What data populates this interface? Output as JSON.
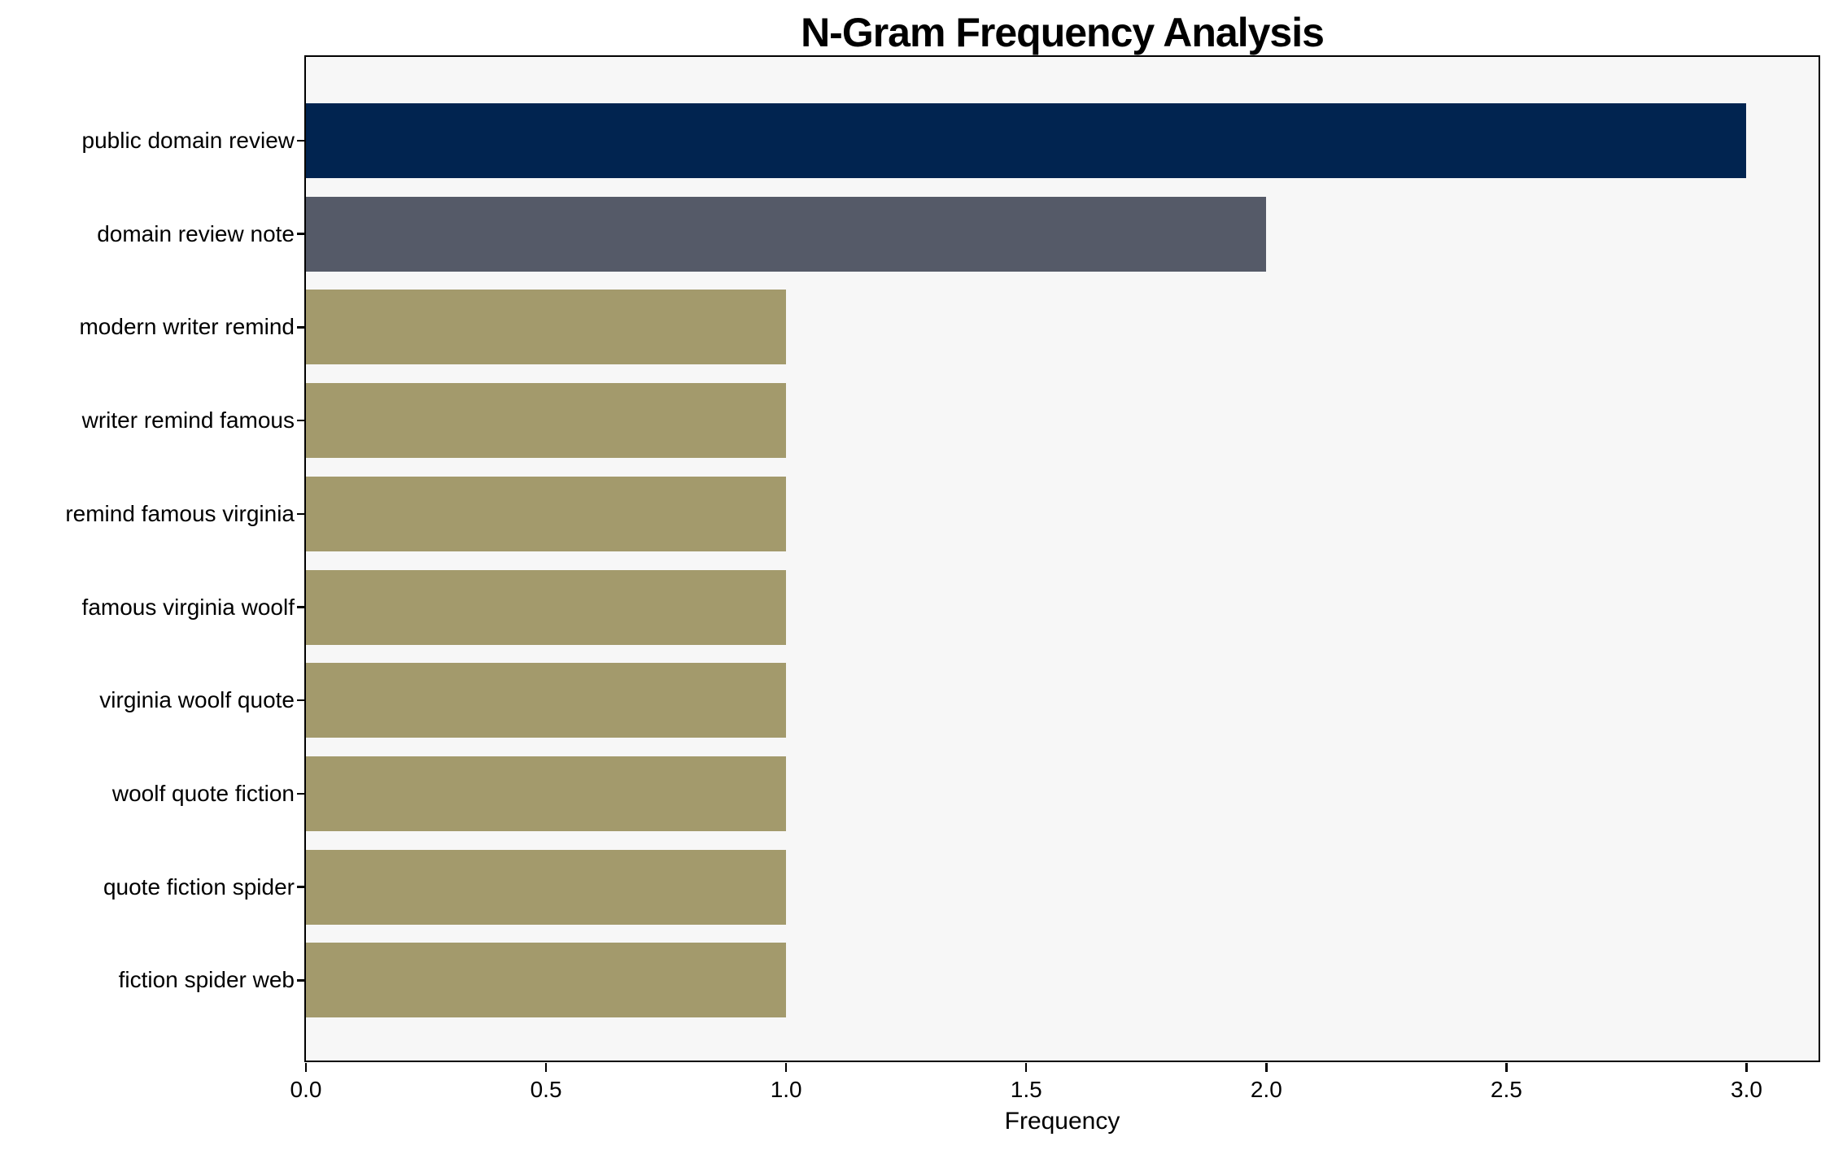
{
  "chart_data": {
    "type": "bar",
    "orientation": "horizontal",
    "title": "N-Gram Frequency Analysis",
    "xlabel": "Frequency",
    "ylabel": "",
    "categories": [
      "public domain review",
      "domain review note",
      "modern writer remind",
      "writer remind famous",
      "remind famous virginia",
      "famous virginia woolf",
      "virginia woolf quote",
      "woolf quote fiction",
      "quote fiction spider",
      "fiction spider web"
    ],
    "values": [
      3,
      2,
      1,
      1,
      1,
      1,
      1,
      1,
      1,
      1
    ],
    "bar_colors": [
      "#012450",
      "#555a68",
      "#a39a6c",
      "#a39a6c",
      "#a39a6c",
      "#a39a6c",
      "#a39a6c",
      "#a39a6c",
      "#a39a6c",
      "#a39a6c"
    ],
    "xlim": [
      0,
      3.15
    ],
    "xticks": [
      "0.0",
      "0.5",
      "1.0",
      "1.5",
      "2.0",
      "2.5",
      "3.0"
    ],
    "xtick_values": [
      0,
      0.5,
      1,
      1.5,
      2,
      2.5,
      3
    ],
    "grid": false,
    "legend": "none",
    "plot_background": "#f7f7f7",
    "figure_background": "#ffffff",
    "spine_color": "#000000",
    "text_color": "#000000"
  }
}
